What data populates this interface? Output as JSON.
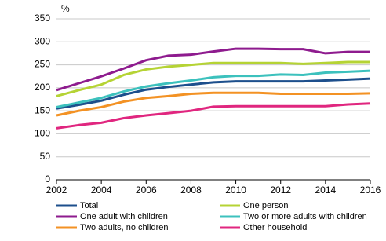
{
  "chart_data": {
    "type": "line",
    "y_label": "%",
    "x": [
      2002,
      2003,
      2004,
      2005,
      2006,
      2007,
      2008,
      2009,
      2010,
      2011,
      2012,
      2013,
      2014,
      2015,
      2016
    ],
    "xlim": [
      2002,
      2016
    ],
    "xticks": [
      2002,
      2004,
      2006,
      2008,
      2010,
      2012,
      2014,
      2016
    ],
    "ylim": [
      0,
      350
    ],
    "yticks": [
      0,
      50,
      100,
      150,
      200,
      250,
      300,
      350
    ],
    "grid": true,
    "series": [
      {
        "name": "Total",
        "color": "#1d4f8c",
        "values": [
          155,
          163,
          172,
          185,
          196,
          202,
          207,
          212,
          214,
          214,
          214,
          214,
          216,
          218,
          220
        ]
      },
      {
        "name": "One person",
        "color": "#b5d334",
        "values": [
          182,
          195,
          207,
          228,
          240,
          246,
          250,
          254,
          254,
          254,
          254,
          252,
          254,
          256,
          256
        ]
      },
      {
        "name": "One adult with children",
        "color": "#8e1b8e",
        "values": [
          195,
          210,
          225,
          242,
          260,
          270,
          272,
          279,
          285,
          285,
          284,
          284,
          275,
          278,
          278
        ]
      },
      {
        "name": "Two or more adults with children",
        "color": "#3cc1bd",
        "values": [
          158,
          168,
          178,
          192,
          203,
          210,
          216,
          223,
          226,
          226,
          229,
          228,
          233,
          235,
          237
        ]
      },
      {
        "name": "Two adults, no children",
        "color": "#f39224",
        "values": [
          140,
          150,
          158,
          170,
          178,
          182,
          187,
          189,
          189,
          189,
          187,
          187,
          187,
          187,
          188
        ]
      },
      {
        "name": "Other household",
        "color": "#e0267f",
        "values": [
          112,
          119,
          124,
          134,
          140,
          145,
          150,
          159,
          160,
          160,
          160,
          160,
          160,
          164,
          166
        ]
      }
    ]
  }
}
